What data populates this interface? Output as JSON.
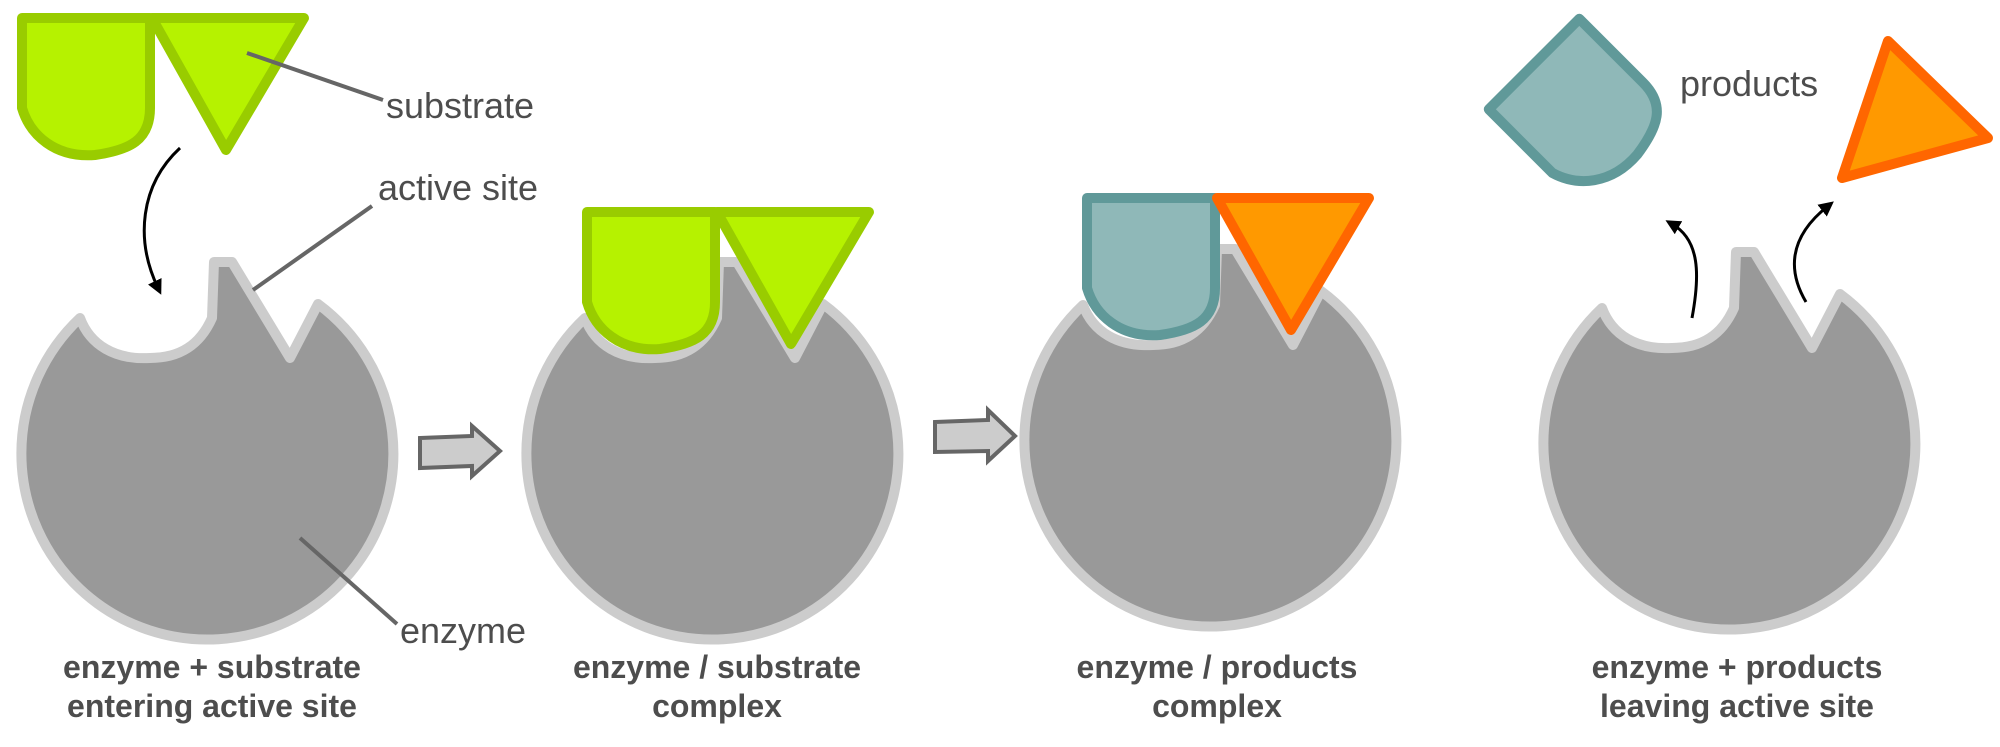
{
  "callouts": {
    "substrate": "substrate",
    "active_site": "active site",
    "enzyme": "enzyme",
    "products": "products"
  },
  "stages": [
    {
      "line1": "enzyme + substrate",
      "line2": "entering active site"
    },
    {
      "line1": "enzyme / substrate",
      "line2": "complex"
    },
    {
      "line1": "enzyme / products",
      "line2": "complex"
    },
    {
      "line1": "enzyme + products",
      "line2": "leaving active site"
    }
  ],
  "colors": {
    "enzyme_fill": "#999999",
    "enzyme_outline": "#cccccc",
    "substrate_fill": "#b6f200",
    "substrate_outline": "#99cc00",
    "product_a_fill": "#8fb8b8",
    "product_a_outline": "#609999",
    "product_b_fill": "#ff9900",
    "product_b_outline": "#ff6600",
    "text": "#4d4d4d",
    "leader_line": "#666666",
    "arrow_fill": "#cccccc",
    "arrow_outline": "#666666"
  }
}
